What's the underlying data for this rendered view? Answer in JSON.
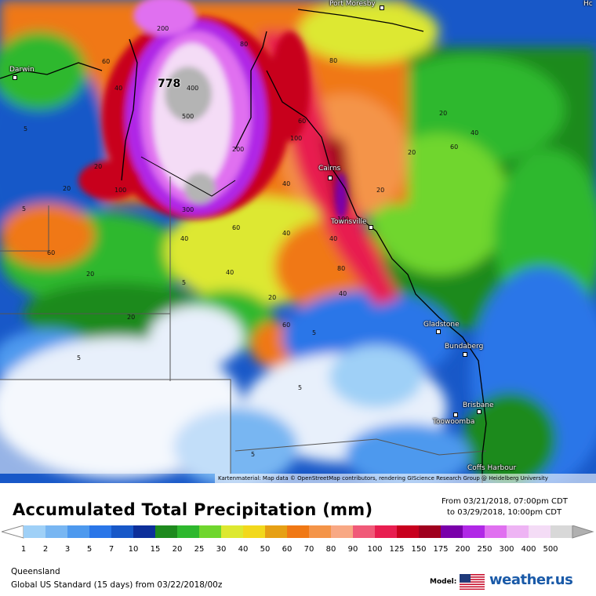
{
  "map": {
    "max_value": "778",
    "attribution": "Kartenmaterial: Map data © OpenStreetMap contributors, rendering GIScience Research Group @ Heidelberg University",
    "cities": [
      {
        "name": "Port Moresby"
      },
      {
        "name": "Darwin"
      },
      {
        "name": "Cairns"
      },
      {
        "name": "Townsville"
      },
      {
        "name": "Gladstone"
      },
      {
        "name": "Bundaberg"
      },
      {
        "name": "Brisbane"
      },
      {
        "name": "Toowoomba"
      },
      {
        "name": "Coffs Harbour"
      },
      {
        "name": "Hc"
      }
    ],
    "contour_labels": [
      "200",
      "400",
      "500",
      "300",
      "200",
      "80",
      "60",
      "40",
      "40",
      "20",
      "20",
      "60",
      "100",
      "100",
      "80",
      "60",
      "40",
      "20",
      "40",
      "60",
      "40",
      "5",
      "20",
      "5",
      "5",
      "5",
      "5",
      "20",
      "40",
      "60",
      "80",
      "100",
      "20",
      "40",
      "20",
      "60",
      "40",
      "20",
      "5",
      "5"
    ]
  },
  "title": "Accumulated Total Precipitation (mm)",
  "dates": {
    "from": "From 03/21/2018, 07:00pm CDT",
    "to": "to 03/29/2018, 10:00pm CDT"
  },
  "legend": {
    "labels": [
      "1",
      "2",
      "3",
      "5",
      "7",
      "10",
      "15",
      "20",
      "25",
      "30",
      "40",
      "50",
      "60",
      "70",
      "80",
      "90",
      "100",
      "125",
      "150",
      "175",
      "200",
      "250",
      "300",
      "400",
      "500"
    ],
    "colors": [
      "#9fd0f7",
      "#78b6f2",
      "#4d99ee",
      "#2a76e8",
      "#1858c8",
      "#0d2f9a",
      "#1e8a1e",
      "#2eb82e",
      "#6fd62e",
      "#dde830",
      "#f2d81c",
      "#e6a014",
      "#f07814",
      "#f49448",
      "#f8a884",
      "#f05a78",
      "#e81e50",
      "#c8001e",
      "#a0001e",
      "#7a00aa",
      "#b028e6",
      "#e070f0",
      "#eeb4f4",
      "#f4dcf6",
      "#d8d8d8"
    ]
  },
  "region": "Queensland",
  "model_line": "Global US Standard (15 days) from 03/22/2018/00z",
  "model_label": "Model:",
  "brand": "weather.us"
}
